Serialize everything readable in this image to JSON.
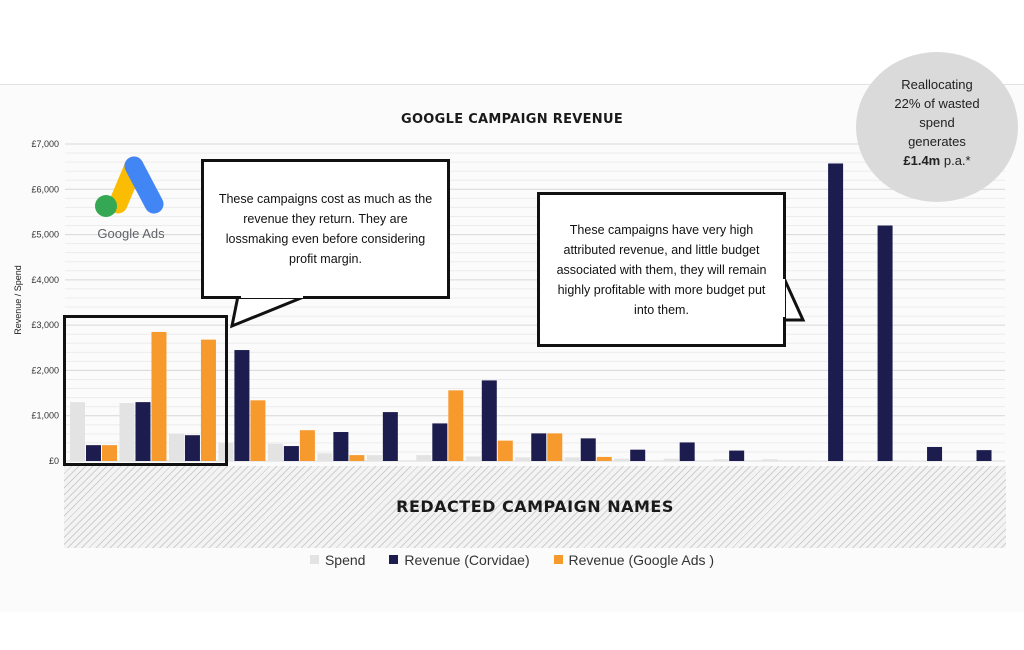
{
  "chart_data": {
    "type": "bar",
    "title": "GOOGLE CAMPAIGN REVENUE",
    "xlabel": "REDACTED CAMPAIGN NAMES",
    "ylabel": "Revenue / Spend",
    "ylim": [
      0,
      7000
    ],
    "yticks": [
      "£0",
      "£1,000",
      "£2,000",
      "£3,000",
      "£4,000",
      "£5,000",
      "£6,000",
      "£7,000"
    ],
    "grid": true,
    "legend_position": "bottom",
    "categories": [
      "",
      "",
      "",
      "",
      "",
      "",
      "",
      "",
      "",
      "",
      "",
      "",
      "",
      "",
      "",
      "",
      "",
      "",
      ""
    ],
    "series": [
      {
        "name": "Spend",
        "color": "#e3e3e3",
        "values": [
          1300,
          1280,
          600,
          400,
          380,
          170,
          130,
          130,
          100,
          80,
          80,
          50,
          50,
          40,
          40,
          10,
          10,
          10,
          10
        ]
      },
      {
        "name": "Revenue (Corvidae)",
        "color": "#1c1c4f",
        "values": [
          350,
          1300,
          570,
          2450,
          330,
          640,
          1080,
          830,
          1780,
          610,
          500,
          250,
          410,
          230,
          0,
          6570,
          5200,
          310,
          240
        ]
      },
      {
        "name": "Revenue (Google Ads )",
        "color": "#f69a2e",
        "values": [
          350,
          2850,
          2680,
          1340,
          680,
          130,
          0,
          1560,
          450,
          610,
          90,
          0,
          0,
          0,
          0,
          0,
          0,
          0,
          0
        ]
      }
    ]
  },
  "logo": {
    "text": "Google Ads"
  },
  "callouts": {
    "left": "These campaigns cost as much as the revenue they return. They are lossmaking even before considering profit margin.",
    "right": "These campaigns have very high attributed revenue, and little budget associated with them, they will remain highly profitable with more budget put into them."
  },
  "bubble": {
    "line1": "Reallocating",
    "line2": "22% of wasted",
    "line3": "spend",
    "line4": "generates",
    "value": "£1.4m",
    "suffix": " p.a.*"
  }
}
